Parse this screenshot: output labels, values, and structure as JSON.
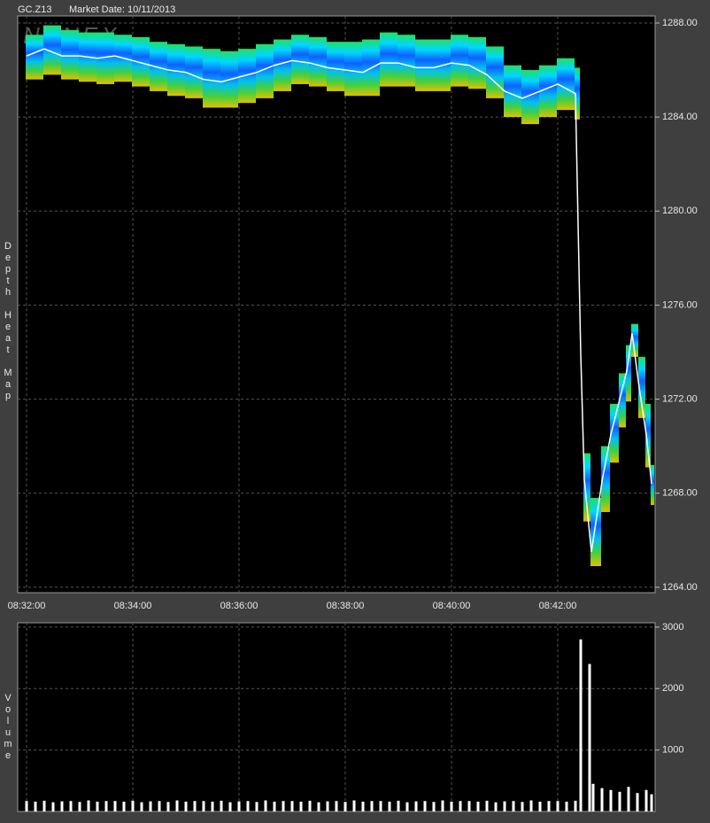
{
  "chart_data": [
    {
      "type": "line",
      "title": "GC.Z13",
      "subtitle": "Market Date: 10/11/2013",
      "watermark": "NANEX",
      "y_label": "Depth Heat Map",
      "x": [
        30720,
        30740,
        30760,
        30780,
        30800,
        30820,
        30840,
        30860,
        30880,
        30900,
        30920,
        30940,
        30960,
        30980,
        31000,
        31020,
        31040,
        31060,
        31080,
        31100,
        31120,
        31140,
        31160,
        31180,
        31200,
        31220,
        31240,
        31260,
        31280,
        31300,
        31320,
        31340,
        31346,
        31350,
        31358,
        31370,
        31380,
        31390,
        31398,
        31404,
        31412,
        31420,
        31426
      ],
      "series": [
        {
          "color": "#ffffff",
          "values": [
            1286.6,
            1286.9,
            1286.6,
            1286.6,
            1286.5,
            1286.6,
            1286.4,
            1286.2,
            1286.0,
            1285.9,
            1285.6,
            1285.5,
            1285.7,
            1285.9,
            1286.2,
            1286.4,
            1286.3,
            1286.1,
            1286.0,
            1285.9,
            1286.3,
            1286.3,
            1286.1,
            1286.1,
            1286.3,
            1286.2,
            1285.8,
            1285.1,
            1284.8,
            1285.1,
            1285.4,
            1285.0,
            1273.9,
            1268.6,
            1265.5,
            1268.5,
            1270.5,
            1272.0,
            1273.2,
            1274.8,
            1272.5,
            1270.5,
            1268.4
          ]
        }
      ],
      "band": {
        "colors": [
          "#20e060",
          "#00d8ff",
          "#1060ff",
          "#00c0f0",
          "#40d040",
          "#e0c000"
        ],
        "high": [
          1287.5,
          1287.9,
          1287.7,
          1287.6,
          1287.6,
          1287.5,
          1287.4,
          1287.2,
          1287.1,
          1287.0,
          1286.9,
          1286.8,
          1286.9,
          1287.1,
          1287.3,
          1287.5,
          1287.4,
          1287.2,
          1287.2,
          1287.3,
          1287.6,
          1287.5,
          1287.3,
          1287.3,
          1287.5,
          1287.4,
          1287.0,
          1286.2,
          1286.0,
          1286.2,
          1286.5,
          1286.1,
          null,
          1269.7,
          1267.8,
          1270.0,
          1271.8,
          1273.1,
          1274.3,
          1275.2,
          1273.8,
          1271.8,
          1269.2
        ],
        "low": [
          1285.6,
          1285.8,
          1285.6,
          1285.5,
          1285.4,
          1285.5,
          1285.3,
          1285.1,
          1284.9,
          1284.8,
          1284.4,
          1284.4,
          1284.6,
          1284.8,
          1285.1,
          1285.4,
          1285.3,
          1285.1,
          1284.9,
          1284.9,
          1285.3,
          1285.3,
          1285.1,
          1285.1,
          1285.3,
          1285.2,
          1284.8,
          1284.0,
          1283.7,
          1284.0,
          1284.3,
          1283.9,
          null,
          1266.8,
          1264.9,
          1267.2,
          1269.3,
          1270.8,
          1271.9,
          1273.8,
          1271.2,
          1269.1,
          1267.5
        ]
      },
      "xlim": [
        30710,
        31430
      ],
      "xticks": [
        {
          "value": 30720,
          "label": "08:32:00"
        },
        {
          "value": 30840,
          "label": "08:34:00"
        },
        {
          "value": 30960,
          "label": "08:36:00"
        },
        {
          "value": 31080,
          "label": "08:38:00"
        },
        {
          "value": 31200,
          "label": "08:40:00"
        },
        {
          "value": 31320,
          "label": "08:42:00"
        }
      ],
      "ylim": [
        1263.77,
        1288.3
      ],
      "yticks": [
        {
          "value": 1264,
          "label": "1264.00"
        },
        {
          "value": 1268,
          "label": "1268.00"
        },
        {
          "value": 1272,
          "label": "1272.00"
        },
        {
          "value": 1276,
          "label": "1276.00"
        },
        {
          "value": 1280,
          "label": "1280.00"
        },
        {
          "value": 1284,
          "label": "1284.00"
        },
        {
          "value": 1288,
          "label": "1288.00"
        }
      ],
      "grid": true
    },
    {
      "type": "bar",
      "y_label": "Volume",
      "color": "#ffffff",
      "x": [
        30720,
        30730,
        30740,
        30750,
        30760,
        30770,
        30780,
        30790,
        30800,
        30810,
        30820,
        30830,
        30840,
        30850,
        30860,
        30870,
        30880,
        30890,
        30900,
        30910,
        30920,
        30930,
        30940,
        30950,
        30960,
        30970,
        30980,
        30990,
        31000,
        31010,
        31020,
        31030,
        31040,
        31050,
        31060,
        31070,
        31080,
        31090,
        31100,
        31110,
        31120,
        31130,
        31140,
        31150,
        31160,
        31170,
        31180,
        31190,
        31200,
        31210,
        31220,
        31230,
        31240,
        31250,
        31260,
        31270,
        31280,
        31290,
        31300,
        31310,
        31320,
        31330,
        31340,
        31346,
        31356,
        31360,
        31370,
        31380,
        31390,
        31400,
        31410,
        31420,
        31426
      ],
      "values": [
        170,
        160,
        175,
        150,
        165,
        170,
        155,
        180,
        160,
        170,
        170,
        160,
        175,
        150,
        165,
        170,
        155,
        180,
        160,
        170,
        170,
        160,
        175,
        150,
        165,
        170,
        155,
        180,
        160,
        170,
        170,
        160,
        175,
        150,
        165,
        170,
        155,
        180,
        160,
        170,
        170,
        160,
        175,
        150,
        165,
        170,
        155,
        180,
        160,
        170,
        170,
        160,
        175,
        150,
        165,
        170,
        155,
        180,
        160,
        170,
        170,
        160,
        175,
        2800,
        2400,
        450,
        380,
        350,
        320,
        400,
        300,
        350,
        280
      ],
      "xlim": [
        30710,
        31430
      ],
      "ylim": [
        0,
        3070
      ],
      "yticks": [
        1000,
        2000,
        3000
      ],
      "grid": true
    }
  ]
}
